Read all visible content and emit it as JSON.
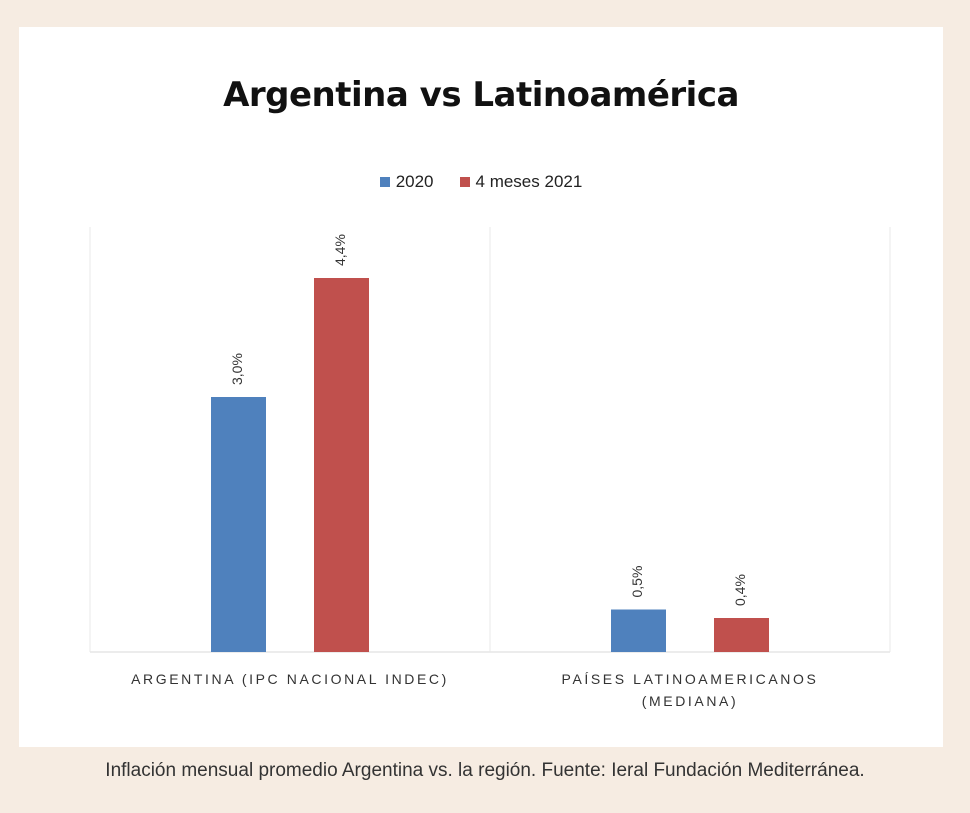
{
  "caption": "Inflación mensual promedio Argentina vs. la región. Fuente: Ieral Fundación Mediterránea.",
  "chart_data": {
    "type": "bar",
    "title": "Argentina vs Latinoamérica",
    "categories": [
      "ARGENTINA (IPC NACIONAL INDEC)",
      "PAÍSES LATINOAMERICANOS (MEDIANA)"
    ],
    "category_lines": [
      [
        "ARGENTINA (IPC NACIONAL INDEC)"
      ],
      [
        "PAÍSES LATINOAMERICANOS",
        "(MEDIANA)"
      ]
    ],
    "series": [
      {
        "name": "2020",
        "values": [
          3.0,
          0.5
        ],
        "labels": [
          "3,0%",
          "0,5%"
        ],
        "color": "#4f81bd"
      },
      {
        "name": "4 meses 2021",
        "values": [
          4.4,
          0.4
        ],
        "labels": [
          "4,4%",
          "0,4%"
        ],
        "color": "#c0504d"
      }
    ],
    "ylim": [
      0,
      5
    ],
    "legend_position": "top",
    "grid": false
  }
}
